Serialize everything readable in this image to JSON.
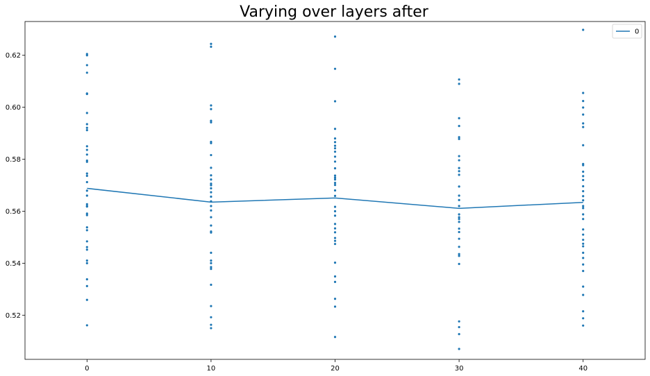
{
  "chart_data": {
    "type": "scatter",
    "title": "Varying over layers after",
    "xlabel": "",
    "ylabel": "",
    "xlim": [
      -5,
      45
    ],
    "ylim": [
      0.503,
      0.633
    ],
    "xticks": [
      0,
      10,
      20,
      30,
      40
    ],
    "xtick_labels": [
      "0",
      "10",
      "20",
      "30",
      "40"
    ],
    "yticks": [
      0.52,
      0.54,
      0.56,
      0.58,
      0.6,
      0.62
    ],
    "ytick_labels": [
      "0.52",
      "0.54",
      "0.56",
      "0.58",
      "0.60",
      "0.62"
    ],
    "grid": false,
    "legend": {
      "position": "top-right",
      "entries": [
        "0"
      ]
    },
    "colors": {
      "series": "#1f77b4"
    },
    "series": [
      {
        "name": "0",
        "kind": "line",
        "x": [
          0,
          10,
          20,
          30,
          40
        ],
        "y": [
          0.5688,
          0.5635,
          0.5651,
          0.5611,
          0.5634
        ]
      },
      {
        "kind": "scatter",
        "points": [
          [
            0,
            0.6205
          ],
          [
            0,
            0.62
          ],
          [
            0,
            0.6162
          ],
          [
            0,
            0.6133
          ],
          [
            0,
            0.6053
          ],
          [
            0,
            0.6051
          ],
          [
            0,
            0.5978
          ],
          [
            0,
            0.5935
          ],
          [
            0,
            0.5921
          ],
          [
            0,
            0.5912
          ],
          [
            0,
            0.585
          ],
          [
            0,
            0.5836
          ],
          [
            0,
            0.5818
          ],
          [
            0,
            0.5795
          ],
          [
            0,
            0.579
          ],
          [
            0,
            0.5745
          ],
          [
            0,
            0.5736
          ],
          [
            0,
            0.5712
          ],
          [
            0,
            0.5679
          ],
          [
            0,
            0.566
          ],
          [
            0,
            0.5627
          ],
          [
            0,
            0.562
          ],
          [
            0,
            0.5618
          ],
          [
            0,
            0.5591
          ],
          [
            0,
            0.5585
          ],
          [
            0,
            0.5538
          ],
          [
            0,
            0.5527
          ],
          [
            0,
            0.5484
          ],
          [
            0,
            0.5462
          ],
          [
            0,
            0.5452
          ],
          [
            0,
            0.541
          ],
          [
            0,
            0.54
          ],
          [
            0,
            0.5338
          ],
          [
            0,
            0.5312
          ],
          [
            0,
            0.5259
          ],
          [
            0,
            0.5161
          ],
          [
            10,
            0.6244
          ],
          [
            10,
            0.6233
          ],
          [
            10,
            0.6007
          ],
          [
            10,
            0.5993
          ],
          [
            10,
            0.5948
          ],
          [
            10,
            0.5942
          ],
          [
            10,
            0.5867
          ],
          [
            10,
            0.5862
          ],
          [
            10,
            0.5816
          ],
          [
            10,
            0.5767
          ],
          [
            10,
            0.5738
          ],
          [
            10,
            0.5722
          ],
          [
            10,
            0.5706
          ],
          [
            10,
            0.57
          ],
          [
            10,
            0.5688
          ],
          [
            10,
            0.5673
          ],
          [
            10,
            0.5656
          ],
          [
            10,
            0.5638
          ],
          [
            10,
            0.562
          ],
          [
            10,
            0.5603
          ],
          [
            10,
            0.5577
          ],
          [
            10,
            0.5545
          ],
          [
            10,
            0.5522
          ],
          [
            10,
            0.5518
          ],
          [
            10,
            0.544
          ],
          [
            10,
            0.541
          ],
          [
            10,
            0.54
          ],
          [
            10,
            0.5385
          ],
          [
            10,
            0.5378
          ],
          [
            10,
            0.5317
          ],
          [
            10,
            0.5235
          ],
          [
            10,
            0.5192
          ],
          [
            10,
            0.5163
          ],
          [
            10,
            0.515
          ],
          [
            20,
            0.6272
          ],
          [
            20,
            0.6148
          ],
          [
            20,
            0.6023
          ],
          [
            20,
            0.5917
          ],
          [
            20,
            0.588
          ],
          [
            20,
            0.5866
          ],
          [
            20,
            0.5852
          ],
          [
            20,
            0.5842
          ],
          [
            20,
            0.5829
          ],
          [
            20,
            0.581
          ],
          [
            20,
            0.5791
          ],
          [
            20,
            0.5765
          ],
          [
            20,
            0.5737
          ],
          [
            20,
            0.5729
          ],
          [
            20,
            0.5722
          ],
          [
            20,
            0.5709
          ],
          [
            20,
            0.5701
          ],
          [
            20,
            0.568
          ],
          [
            20,
            0.5659
          ],
          [
            20,
            0.5617
          ],
          [
            20,
            0.56
          ],
          [
            20,
            0.5583
          ],
          [
            20,
            0.5551
          ],
          [
            20,
            0.5534
          ],
          [
            20,
            0.5519
          ],
          [
            20,
            0.5497
          ],
          [
            20,
            0.5486
          ],
          [
            20,
            0.5474
          ],
          [
            20,
            0.5402
          ],
          [
            20,
            0.5349
          ],
          [
            20,
            0.5328
          ],
          [
            20,
            0.5263
          ],
          [
            20,
            0.5233
          ],
          [
            20,
            0.5116
          ],
          [
            30,
            0.6107
          ],
          [
            30,
            0.609
          ],
          [
            30,
            0.5958
          ],
          [
            30,
            0.5928
          ],
          [
            30,
            0.5885
          ],
          [
            30,
            0.5878
          ],
          [
            30,
            0.5812
          ],
          [
            30,
            0.5796
          ],
          [
            30,
            0.5766
          ],
          [
            30,
            0.5754
          ],
          [
            30,
            0.574
          ],
          [
            30,
            0.5695
          ],
          [
            30,
            0.566
          ],
          [
            30,
            0.5643
          ],
          [
            30,
            0.562
          ],
          [
            30,
            0.5588
          ],
          [
            30,
            0.5577
          ],
          [
            30,
            0.557
          ],
          [
            30,
            0.5559
          ],
          [
            30,
            0.5533
          ],
          [
            30,
            0.552
          ],
          [
            30,
            0.5494
          ],
          [
            30,
            0.5463
          ],
          [
            30,
            0.5435
          ],
          [
            30,
            0.5428
          ],
          [
            30,
            0.5397
          ],
          [
            30,
            0.5176
          ],
          [
            30,
            0.5154
          ],
          [
            30,
            0.5127
          ],
          [
            30,
            0.507
          ],
          [
            40,
            0.6298
          ],
          [
            40,
            0.6055
          ],
          [
            40,
            0.6024
          ],
          [
            40,
            0.5999
          ],
          [
            40,
            0.5972
          ],
          [
            40,
            0.5938
          ],
          [
            40,
            0.5924
          ],
          [
            40,
            0.5854
          ],
          [
            40,
            0.5782
          ],
          [
            40,
            0.5777
          ],
          [
            40,
            0.5752
          ],
          [
            40,
            0.5735
          ],
          [
            40,
            0.572
          ],
          [
            40,
            0.5696
          ],
          [
            40,
            0.5677
          ],
          [
            40,
            0.5658
          ],
          [
            40,
            0.5642
          ],
          [
            40,
            0.562
          ],
          [
            40,
            0.5612
          ],
          [
            40,
            0.5588
          ],
          [
            40,
            0.557
          ],
          [
            40,
            0.553
          ],
          [
            40,
            0.551
          ],
          [
            40,
            0.549
          ],
          [
            40,
            0.5475
          ],
          [
            40,
            0.5465
          ],
          [
            40,
            0.544
          ],
          [
            40,
            0.542
          ],
          [
            40,
            0.5395
          ],
          [
            40,
            0.537
          ],
          [
            40,
            0.531
          ],
          [
            40,
            0.5278
          ],
          [
            40,
            0.5215
          ],
          [
            40,
            0.5188
          ],
          [
            40,
            0.516
          ]
        ]
      }
    ]
  }
}
